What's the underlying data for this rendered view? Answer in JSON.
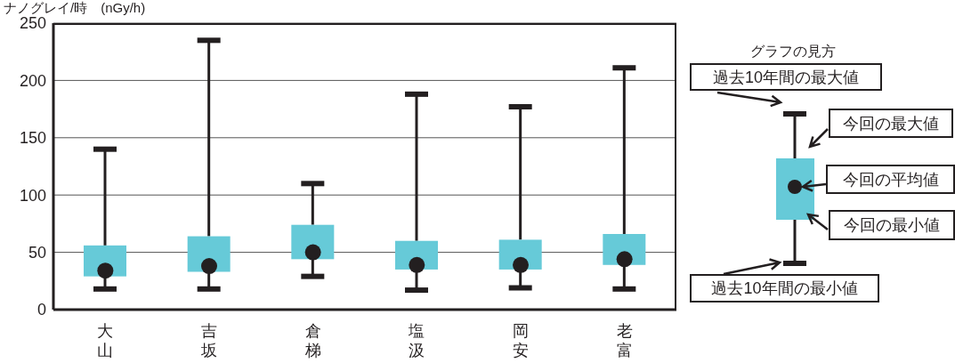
{
  "chart_data": {
    "type": "box",
    "ylabel": "ナノグレイ/時　(nGy/h)",
    "categories": [
      "大山",
      "吉坂",
      "倉梯",
      "塩汲",
      "岡安",
      "老富"
    ],
    "color": "#66cad8",
    "boxes": [
      {
        "low": 18,
        "q1": 29,
        "q3": 56,
        "high": 140,
        "mean": 34
      },
      {
        "low": 18,
        "q1": 33,
        "q3": 64,
        "high": 235,
        "mean": 38
      },
      {
        "low": 29,
        "q1": 44,
        "q3": 74,
        "high": 110,
        "mean": 50
      },
      {
        "low": 17,
        "q1": 35,
        "q3": 60,
        "high": 188,
        "mean": 39
      },
      {
        "low": 19,
        "q1": 35,
        "q3": 61,
        "high": 177,
        "mean": 39
      },
      {
        "low": 18,
        "q1": 39,
        "q3": 66,
        "high": 211,
        "mean": 44
      }
    ],
    "ylim": [
      0,
      250
    ],
    "yticks": [
      0,
      50,
      100,
      150,
      200,
      250
    ],
    "grid": "y",
    "annotations": [
      "グラフの見方",
      "過去10年間の最大値",
      "今回の最大値",
      "今回の平均値",
      "今回の最小値",
      "過去10年間の最小値"
    ]
  }
}
